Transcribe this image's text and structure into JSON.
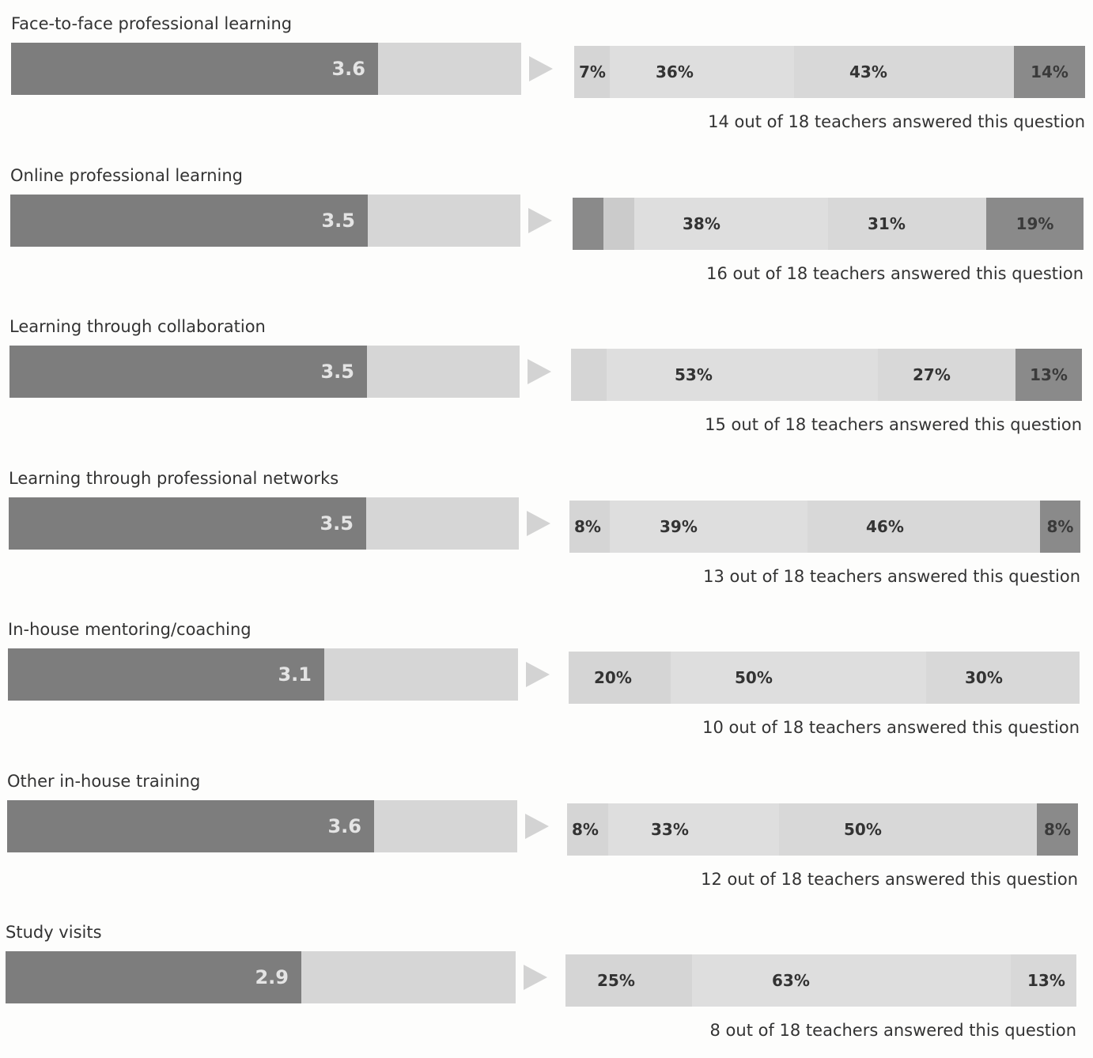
{
  "colors": {
    "score_fill": "#7d7d7d",
    "score_track": "#d6d6d6",
    "arrow": "#d3d3d3",
    "segments": [
      "#cbcbcb",
      "#d5d5d5",
      "#dedede",
      "#d8d8d8",
      "#8a8a8a"
    ]
  },
  "chart_data": {
    "type": "bar",
    "score_range": [
      0,
      5
    ],
    "distribution_range": [
      0,
      100
    ],
    "rows": [
      {
        "title": "Face-to-face professional learning",
        "score": 3.6,
        "score_label": "3.6",
        "segments": [
          {
            "value": 7,
            "label": "7%",
            "level": 1
          },
          {
            "value": 36,
            "label": "36%",
            "level": 2
          },
          {
            "value": 43,
            "label": "43%",
            "level": 3
          },
          {
            "value": 14,
            "label": "14%",
            "level": 4
          }
        ],
        "answered": "14 out of 18 teachers answered this question"
      },
      {
        "title": "Online professional learning",
        "score": 3.5,
        "score_label": "3.5",
        "segments": [
          {
            "value": 6,
            "label": "",
            "level": 4
          },
          {
            "value": 6,
            "label": "",
            "level": 0
          },
          {
            "value": 38,
            "label": "38%",
            "level": 2
          },
          {
            "value": 31,
            "label": "31%",
            "level": 3
          },
          {
            "value": 19,
            "label": "19%",
            "level": 4
          }
        ],
        "answered": "16 out of 18 teachers answered this question"
      },
      {
        "title": "Learning through collaboration",
        "score": 3.5,
        "score_label": "3.5",
        "segments": [
          {
            "value": 7,
            "label": "",
            "level": 1
          },
          {
            "value": 53,
            "label": "53%",
            "level": 2
          },
          {
            "value": 27,
            "label": "27%",
            "level": 3
          },
          {
            "value": 13,
            "label": "13%",
            "level": 4
          }
        ],
        "answered": "15 out of 18 teachers answered this question"
      },
      {
        "title": "Learning through professional networks",
        "score": 3.5,
        "score_label": "3.5",
        "segments": [
          {
            "value": 8,
            "label": "8%",
            "level": 1
          },
          {
            "value": 39,
            "label": "39%",
            "level": 2
          },
          {
            "value": 46,
            "label": "46%",
            "level": 3
          },
          {
            "value": 8,
            "label": "8%",
            "level": 4
          }
        ],
        "answered": "13 out of 18 teachers answered this question"
      },
      {
        "title": "In-house mentoring/coaching",
        "score": 3.1,
        "score_label": "3.1",
        "segments": [
          {
            "value": 20,
            "label": "20%",
            "level": 1
          },
          {
            "value": 50,
            "label": "50%",
            "level": 2
          },
          {
            "value": 30,
            "label": "30%",
            "level": 3
          }
        ],
        "answered": "10 out of 18 teachers answered this question"
      },
      {
        "title": "Other in-house training",
        "score": 3.6,
        "score_label": "3.6",
        "segments": [
          {
            "value": 8,
            "label": "8%",
            "level": 1
          },
          {
            "value": 33,
            "label": "33%",
            "level": 2
          },
          {
            "value": 50,
            "label": "50%",
            "level": 3
          },
          {
            "value": 8,
            "label": "8%",
            "level": 4
          }
        ],
        "answered": "12 out of 18 teachers answered this question"
      },
      {
        "title": "Study visits",
        "score": 2.9,
        "score_label": "2.9",
        "segments": [
          {
            "value": 25,
            "label": "25%",
            "level": 1
          },
          {
            "value": 63,
            "label": "63%",
            "level": 2
          },
          {
            "value": 13,
            "label": "13%",
            "level": 3
          }
        ],
        "answered": "8 out of 18 teachers answered this question"
      }
    ]
  }
}
